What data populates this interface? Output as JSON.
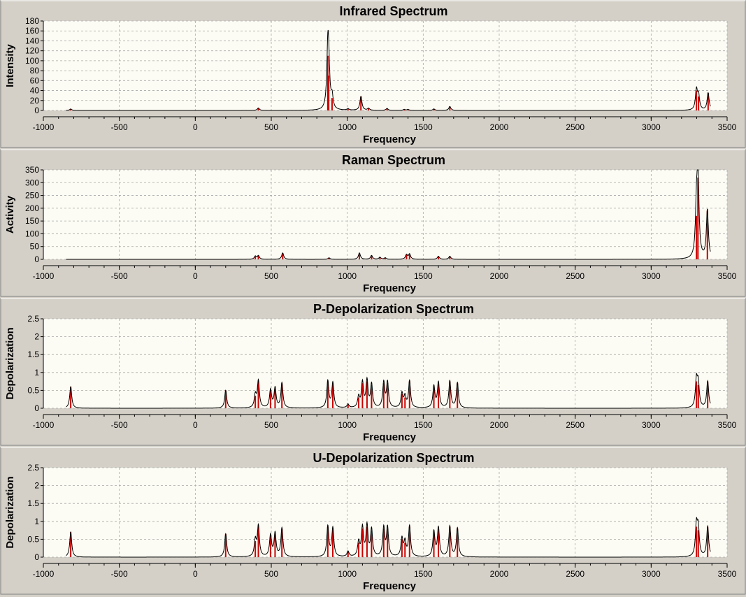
{
  "colors": {
    "panel_bg": "#d4d0c8",
    "plot_bg": "#fcfcf4",
    "grid": "#a8a8a8",
    "curve": "#000000",
    "sticks": "#cc0000"
  },
  "chart_data": [
    {
      "type": "line",
      "title": "Infrared Spectrum",
      "xlabel": "Frequency",
      "ylabel": "Intensity",
      "xlim": [
        -1000,
        3500
      ],
      "ylim": [
        0,
        180
      ],
      "xticks": [
        -1000,
        -500,
        0,
        500,
        1000,
        1500,
        2000,
        2500,
        3000,
        3500
      ],
      "yticks": [
        0,
        20,
        40,
        60,
        80,
        100,
        120,
        140,
        160,
        180
      ],
      "grid": true,
      "legend": "none",
      "sticks": [
        {
          "x": -820,
          "y": 3
        },
        {
          "x": 415,
          "y": 5
        },
        {
          "x": 872,
          "y": 110
        },
        {
          "x": 878,
          "y": 70
        },
        {
          "x": 900,
          "y": 25
        },
        {
          "x": 1005,
          "y": 3
        },
        {
          "x": 1090,
          "y": 28
        },
        {
          "x": 1140,
          "y": 4
        },
        {
          "x": 1262,
          "y": 4
        },
        {
          "x": 1375,
          "y": 2
        },
        {
          "x": 1400,
          "y": 2
        },
        {
          "x": 1570,
          "y": 3
        },
        {
          "x": 1675,
          "y": 8
        },
        {
          "x": 3298,
          "y": 40
        },
        {
          "x": 3312,
          "y": 28
        },
        {
          "x": 3375,
          "y": 35
        }
      ],
      "curve": {
        "x_start": -850,
        "x_end": 3390,
        "hwhm": 8
      }
    },
    {
      "type": "line",
      "title": "Raman Spectrum",
      "xlabel": "Frequency",
      "ylabel": "Activity",
      "xlim": [
        -1000,
        3500
      ],
      "ylim": [
        0,
        350
      ],
      "xticks": [
        -1000,
        -500,
        0,
        500,
        1000,
        1500,
        2000,
        2500,
        3000,
        3500
      ],
      "yticks": [
        0,
        50,
        100,
        150,
        200,
        250,
        300,
        350
      ],
      "grid": true,
      "legend": "none",
      "sticks": [
        {
          "x": 395,
          "y": 12
        },
        {
          "x": 415,
          "y": 14
        },
        {
          "x": 575,
          "y": 25
        },
        {
          "x": 880,
          "y": 6
        },
        {
          "x": 1080,
          "y": 25
        },
        {
          "x": 1160,
          "y": 15
        },
        {
          "x": 1215,
          "y": 8
        },
        {
          "x": 1250,
          "y": 6
        },
        {
          "x": 1390,
          "y": 18
        },
        {
          "x": 1410,
          "y": 20
        },
        {
          "x": 1600,
          "y": 12
        },
        {
          "x": 1675,
          "y": 12
        },
        {
          "x": 3298,
          "y": 170
        },
        {
          "x": 3308,
          "y": 320
        },
        {
          "x": 3370,
          "y": 190
        }
      ],
      "curve": {
        "x_start": -850,
        "x_end": 3390,
        "hwhm": 8
      }
    },
    {
      "type": "line",
      "title": "P-Depolarization Spectrum",
      "xlabel": "Frequency",
      "ylabel": "Depolarization",
      "xlim": [
        -1000,
        3500
      ],
      "ylim": [
        0,
        2.5
      ],
      "xticks": [
        -1000,
        -500,
        0,
        500,
        1000,
        1500,
        2000,
        2500,
        3000,
        3500
      ],
      "yticks": [
        0,
        0.5,
        1,
        1.5,
        2,
        2.5
      ],
      "grid": true,
      "legend": "none",
      "sticks": [
        {
          "x": -820,
          "y": 0.6
        },
        {
          "x": 200,
          "y": 0.5
        },
        {
          "x": 395,
          "y": 0.35
        },
        {
          "x": 415,
          "y": 0.75
        },
        {
          "x": 495,
          "y": 0.5
        },
        {
          "x": 525,
          "y": 0.55
        },
        {
          "x": 570,
          "y": 0.7
        },
        {
          "x": 872,
          "y": 0.75
        },
        {
          "x": 905,
          "y": 0.7
        },
        {
          "x": 1005,
          "y": 0.1
        },
        {
          "x": 1075,
          "y": 0.3
        },
        {
          "x": 1100,
          "y": 0.7
        },
        {
          "x": 1130,
          "y": 0.75
        },
        {
          "x": 1160,
          "y": 0.65
        },
        {
          "x": 1240,
          "y": 0.7
        },
        {
          "x": 1265,
          "y": 0.7
        },
        {
          "x": 1360,
          "y": 0.4
        },
        {
          "x": 1380,
          "y": 0.3
        },
        {
          "x": 1410,
          "y": 0.75
        },
        {
          "x": 1570,
          "y": 0.6
        },
        {
          "x": 1600,
          "y": 0.7
        },
        {
          "x": 1675,
          "y": 0.75
        },
        {
          "x": 1725,
          "y": 0.7
        },
        {
          "x": 3298,
          "y": 0.75
        },
        {
          "x": 3310,
          "y": 0.65
        },
        {
          "x": 3372,
          "y": 0.75
        }
      ],
      "curve": {
        "x_start": -850,
        "x_end": 3390,
        "hwhm": 8
      }
    },
    {
      "type": "line",
      "title": "U-Depolarization Spectrum",
      "xlabel": "Frequency",
      "ylabel": "Depolarization",
      "xlim": [
        -1000,
        3500
      ],
      "ylim": [
        0,
        2.5
      ],
      "xticks": [
        -1000,
        -500,
        0,
        500,
        1000,
        1500,
        2000,
        2500,
        3000,
        3500
      ],
      "yticks": [
        0,
        0.5,
        1,
        1.5,
        2,
        2.5
      ],
      "grid": true,
      "legend": "none",
      "sticks": [
        {
          "x": -820,
          "y": 0.7
        },
        {
          "x": 200,
          "y": 0.65
        },
        {
          "x": 395,
          "y": 0.45
        },
        {
          "x": 415,
          "y": 0.85
        },
        {
          "x": 495,
          "y": 0.6
        },
        {
          "x": 525,
          "y": 0.65
        },
        {
          "x": 570,
          "y": 0.8
        },
        {
          "x": 872,
          "y": 0.85
        },
        {
          "x": 905,
          "y": 0.8
        },
        {
          "x": 1005,
          "y": 0.15
        },
        {
          "x": 1075,
          "y": 0.4
        },
        {
          "x": 1100,
          "y": 0.8
        },
        {
          "x": 1130,
          "y": 0.85
        },
        {
          "x": 1160,
          "y": 0.75
        },
        {
          "x": 1240,
          "y": 0.8
        },
        {
          "x": 1265,
          "y": 0.8
        },
        {
          "x": 1360,
          "y": 0.5
        },
        {
          "x": 1380,
          "y": 0.4
        },
        {
          "x": 1410,
          "y": 0.85
        },
        {
          "x": 1570,
          "y": 0.7
        },
        {
          "x": 1600,
          "y": 0.8
        },
        {
          "x": 1675,
          "y": 0.85
        },
        {
          "x": 1725,
          "y": 0.8
        },
        {
          "x": 3298,
          "y": 0.85
        },
        {
          "x": 3310,
          "y": 0.75
        },
        {
          "x": 3372,
          "y": 0.85
        }
      ],
      "curve": {
        "x_start": -850,
        "x_end": 3390,
        "hwhm": 8
      }
    }
  ]
}
